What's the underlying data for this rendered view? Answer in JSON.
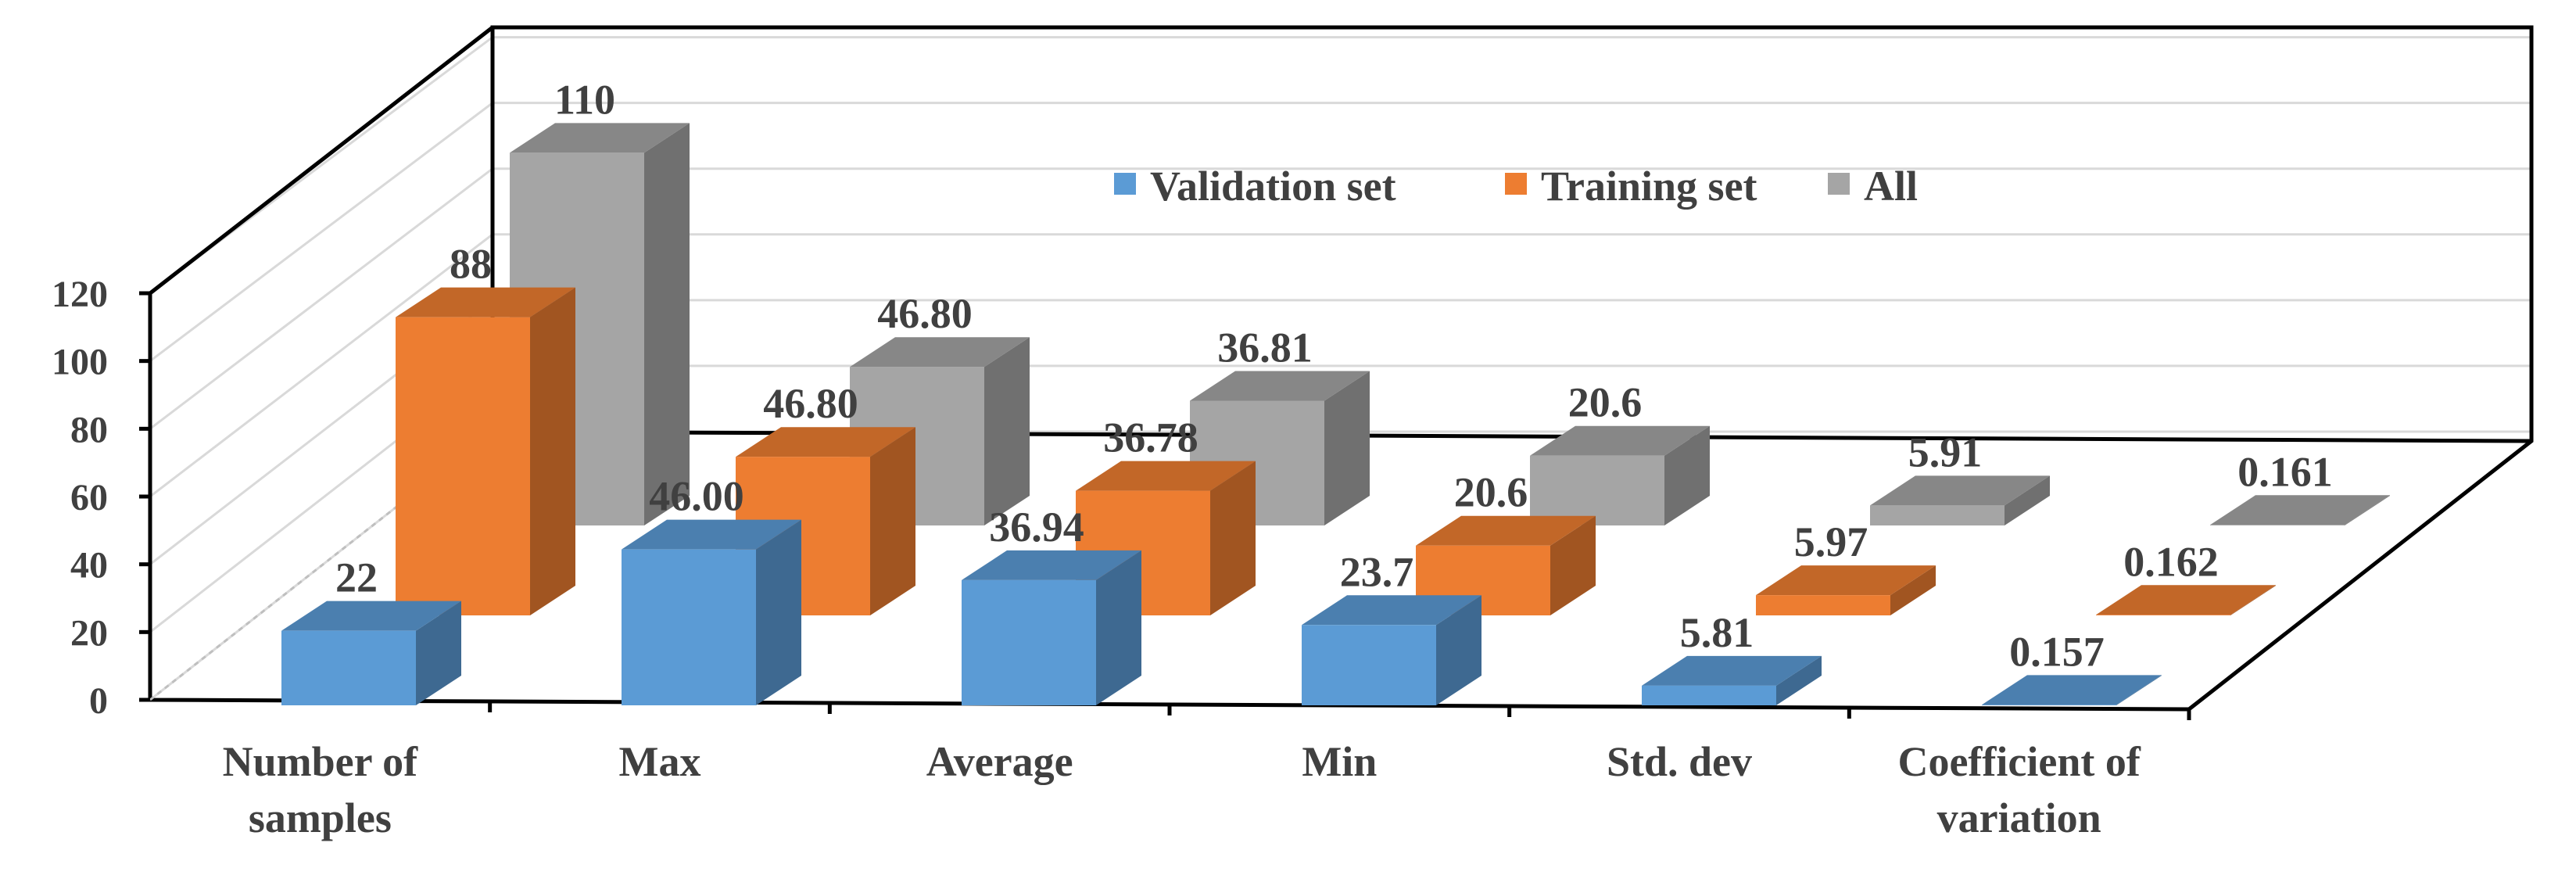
{
  "chart_data": {
    "type": "bar",
    "variant": "3d-clustered-column",
    "categories": [
      "Number of samples",
      "Max",
      "Average",
      "Min",
      "Std. dev",
      "Coefficient of variation"
    ],
    "category_lines": [
      [
        "Number of",
        "samples"
      ],
      [
        "Max"
      ],
      [
        "Average"
      ],
      [
        "Min"
      ],
      [
        "Std. dev"
      ],
      [
        "Coefficient of",
        "variation"
      ]
    ],
    "series": [
      {
        "name": "Validation set",
        "color": "#5b9bd5",
        "values": [
          22,
          46.0,
          36.94,
          23.7,
          5.81,
          0.157
        ],
        "labels": [
          "22",
          "46.00",
          "36.94",
          "23.7",
          "5.81",
          "0.157"
        ]
      },
      {
        "name": "Training set",
        "color": "#ed7d31",
        "values": [
          88,
          46.8,
          36.78,
          20.6,
          5.97,
          0.162
        ],
        "labels": [
          "88",
          "46.80",
          "36.78",
          "20.6",
          "5.97",
          "0.162"
        ]
      },
      {
        "name": "All",
        "color": "#a5a5a5",
        "values": [
          110,
          46.8,
          36.81,
          20.6,
          5.91,
          0.161
        ],
        "labels": [
          "110",
          "46.80",
          "36.81",
          "20.6",
          "5.91",
          "0.161"
        ]
      }
    ],
    "yticks": [
      0,
      20,
      40,
      60,
      80,
      100,
      120
    ],
    "ylim": [
      0,
      120
    ],
    "title": "",
    "xlabel": "",
    "ylabel": "",
    "grid": true,
    "legend": "top-center"
  }
}
